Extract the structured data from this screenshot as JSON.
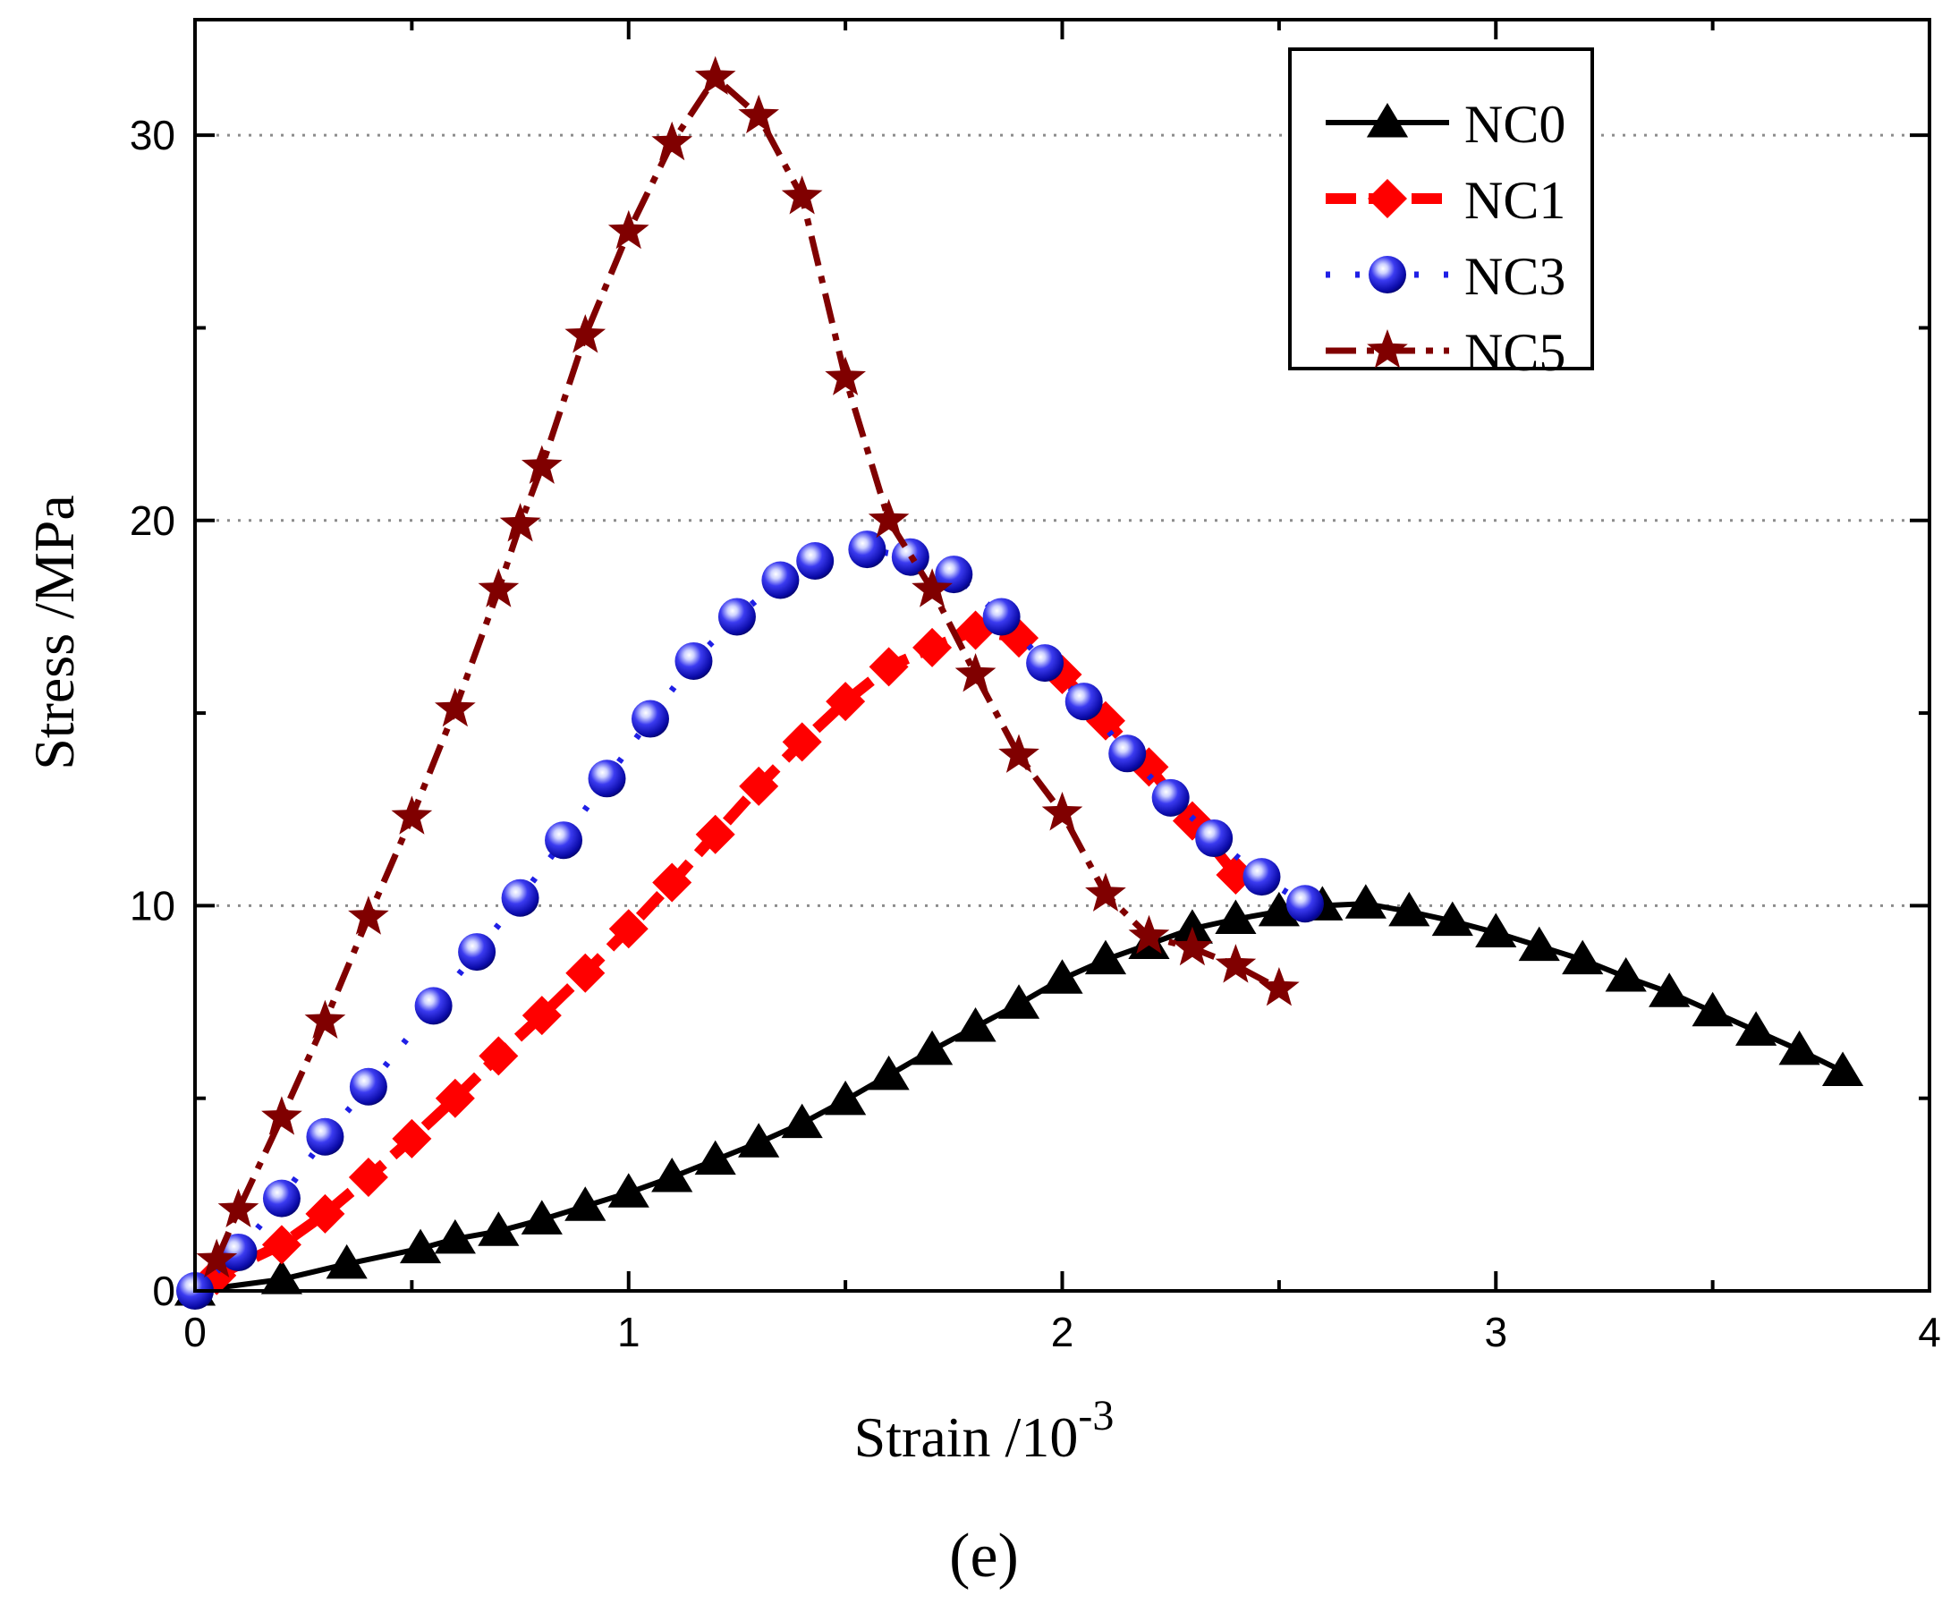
{
  "chart_data": {
    "type": "line",
    "xlabel": "Strain /10",
    "xlabel_superscript": "-3",
    "ylabel": "Stress /MPa",
    "caption": "(e)",
    "xlim": [
      0,
      4
    ],
    "ylim": [
      0,
      33
    ],
    "xticks": [
      0,
      1,
      2,
      3,
      4
    ],
    "yticks": [
      0,
      10,
      20,
      30
    ],
    "grid": "horizontal dotted",
    "legend_position": "top-right",
    "series": [
      {
        "name": "NC0",
        "color": "#000000",
        "line": "solid",
        "marker": "triangle",
        "x": [
          0,
          0.2,
          0.35,
          0.52,
          0.6,
          0.7,
          0.8,
          0.9,
          1.0,
          1.1,
          1.2,
          1.3,
          1.4,
          1.5,
          1.6,
          1.7,
          1.8,
          1.9,
          2.0,
          2.1,
          2.2,
          2.3,
          2.4,
          2.5,
          2.6,
          2.7,
          2.8,
          2.9,
          3.0,
          3.1,
          3.2,
          3.3,
          3.4,
          3.5,
          3.6,
          3.7,
          3.8
        ],
        "y": [
          0,
          0.3,
          0.7,
          1.1,
          1.35,
          1.55,
          1.85,
          2.2,
          2.55,
          2.95,
          3.4,
          3.85,
          4.35,
          4.95,
          5.6,
          6.25,
          6.85,
          7.45,
          8.1,
          8.6,
          9.0,
          9.4,
          9.65,
          9.85,
          10.0,
          10.05,
          9.85,
          9.6,
          9.3,
          8.95,
          8.6,
          8.15,
          7.75,
          7.25,
          6.75,
          6.25,
          5.7
        ]
      },
      {
        "name": "NC1",
        "color": "#ff0000",
        "line": "dashed",
        "marker": "diamond",
        "x": [
          0.05,
          0.2,
          0.3,
          0.4,
          0.5,
          0.6,
          0.7,
          0.8,
          0.9,
          1.0,
          1.1,
          1.2,
          1.3,
          1.4,
          1.5,
          1.6,
          1.7,
          1.8,
          1.9,
          2.0,
          2.1,
          2.2,
          2.3,
          2.4
        ],
        "y": [
          0.4,
          1.2,
          2.0,
          2.95,
          3.95,
          5.0,
          6.1,
          7.15,
          8.25,
          9.4,
          10.6,
          11.85,
          13.1,
          14.25,
          15.3,
          16.2,
          16.7,
          17.15,
          16.95,
          16.0,
          14.8,
          13.6,
          12.2,
          10.8
        ]
      },
      {
        "name": "NC3",
        "color": "#1f1fe6",
        "line": "dotted",
        "marker": "circle",
        "x": [
          0,
          0.1,
          0.2,
          0.3,
          0.4,
          0.55,
          0.65,
          0.75,
          0.85,
          0.95,
          1.05,
          1.15,
          1.25,
          1.35,
          1.43,
          1.55,
          1.65,
          1.75,
          1.86,
          1.96,
          2.05,
          2.15,
          2.25,
          2.35,
          2.46,
          2.56
        ],
        "y": [
          0,
          1.0,
          2.4,
          4.0,
          5.3,
          7.4,
          8.8,
          10.2,
          11.7,
          13.3,
          14.85,
          16.35,
          17.5,
          18.45,
          18.95,
          19.25,
          19.05,
          18.6,
          17.5,
          16.3,
          15.3,
          13.95,
          12.8,
          11.75,
          10.75,
          10.05
        ]
      },
      {
        "name": "NC5",
        "color": "#800000",
        "line": "dash-dot",
        "marker": "star",
        "x": [
          0.05,
          0.1,
          0.2,
          0.3,
          0.4,
          0.5,
          0.6,
          0.7,
          0.75,
          0.8,
          0.9,
          1.0,
          1.1,
          1.2,
          1.3,
          1.4,
          1.5,
          1.6,
          1.7,
          1.8,
          1.9,
          2.0,
          2.1,
          2.2,
          2.3,
          2.4,
          2.5
        ],
        "y": [
          0.8,
          2.1,
          4.5,
          7.0,
          9.7,
          12.3,
          15.1,
          18.2,
          19.9,
          21.4,
          24.8,
          27.5,
          29.8,
          31.5,
          30.5,
          28.4,
          23.7,
          20.0,
          18.2,
          16.0,
          13.9,
          12.4,
          10.3,
          9.2,
          8.9,
          8.45,
          7.85
        ]
      }
    ]
  }
}
